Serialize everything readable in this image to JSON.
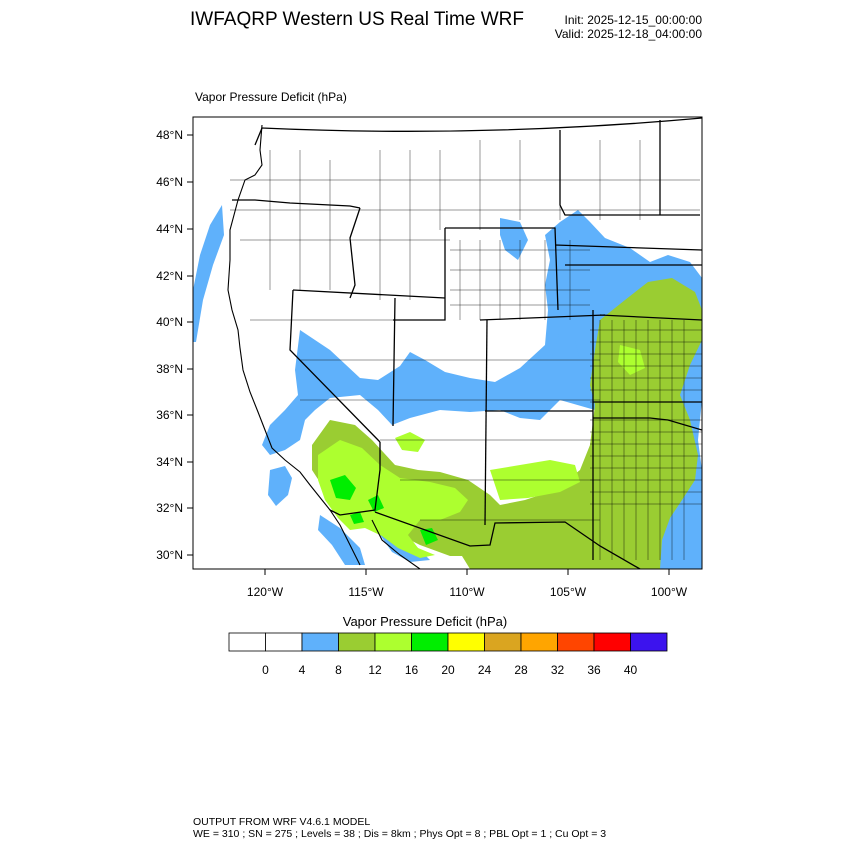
{
  "header": {
    "title": "IWFAQRP Western US Real Time WRF",
    "init": "Init: 2025-12-15_00:00:00",
    "valid": "Valid: 2025-12-18_04:00:00"
  },
  "field": {
    "title": "Vapor Pressure Deficit   (hPa)"
  },
  "axes": {
    "lat_labels": [
      "48°N",
      "46°N",
      "44°N",
      "42°N",
      "40°N",
      "38°N",
      "36°N",
      "34°N",
      "32°N",
      "30°N"
    ],
    "lon_labels": [
      "120°W",
      "115°W",
      "110°W",
      "105°W",
      "100°W"
    ]
  },
  "colorbar": {
    "title": "Vapor Pressure Deficit  (hPa)",
    "colors": [
      "#ffffff",
      "#ffffff",
      "#5fb1fb",
      "#9acd32",
      "#adff2f",
      "#00ee00",
      "#ffff00",
      "#daa520",
      "#ffa500",
      "#ff4500",
      "#ff0000",
      "#3c13ee"
    ],
    "labels": [
      "0",
      "4",
      "8",
      "12",
      "16",
      "20",
      "24",
      "28",
      "32",
      "36",
      "40"
    ]
  },
  "footer": {
    "line1": "OUTPUT FROM WRF V4.6.1 MODEL",
    "line2": "WE = 310 ; SN = 275 ; Levels = 38 ; Dis = 8km ; Phys Opt = 8 ; PBL Opt = 1 ; Cu Opt = 3"
  }
}
